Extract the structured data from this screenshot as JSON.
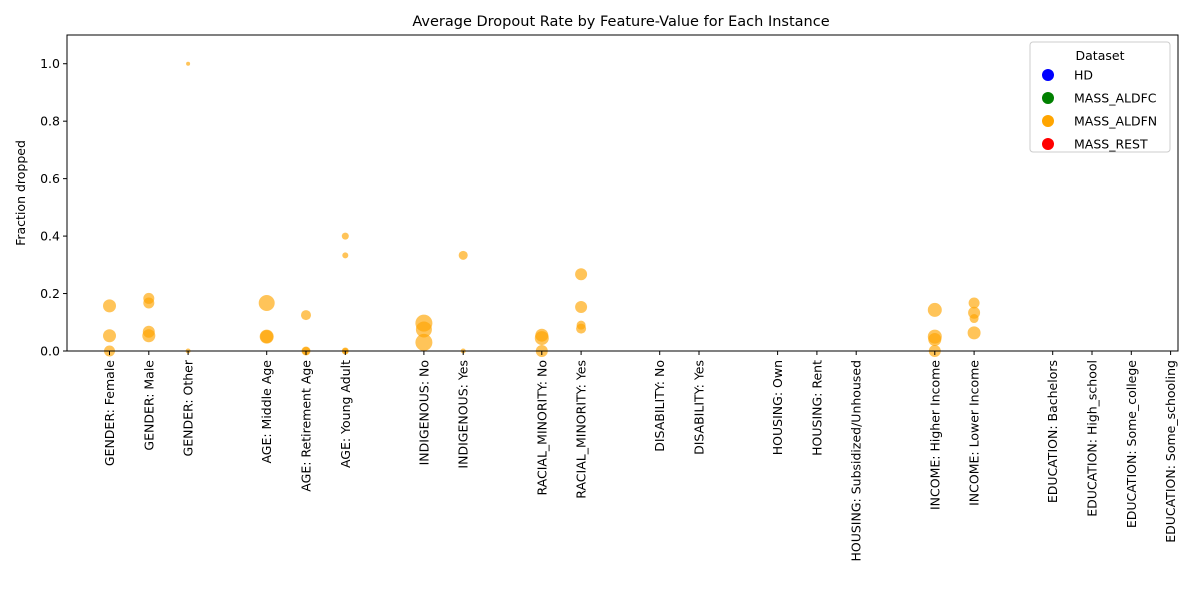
{
  "chart_data": {
    "type": "scatter",
    "title": "Average Dropout Rate by Feature-Value for Each Instance",
    "ylabel": "Fraction dropped",
    "xlabel": "",
    "ylim": [
      0,
      1.1
    ],
    "yticks": [
      0.0,
      0.2,
      0.4,
      0.6,
      0.8,
      1.0
    ],
    "ytick_labels": [
      "0.0",
      "0.2",
      "0.4",
      "0.6",
      "0.8",
      "1.0"
    ],
    "categories": [
      {
        "label": "GENDER: Female",
        "slot": 0
      },
      {
        "label": "GENDER: Male",
        "slot": 1
      },
      {
        "label": "GENDER: Other",
        "slot": 2
      },
      {
        "label": "AGE: Middle Age",
        "slot": 4
      },
      {
        "label": "AGE: Retirement Age",
        "slot": 5
      },
      {
        "label": "AGE: Young Adult",
        "slot": 6
      },
      {
        "label": "INDIGENOUS: No",
        "slot": 8
      },
      {
        "label": "INDIGENOUS: Yes",
        "slot": 9
      },
      {
        "label": "RACIAL_MINORITY: No",
        "slot": 11
      },
      {
        "label": "RACIAL_MINORITY: Yes",
        "slot": 12
      },
      {
        "label": "DISABILITY: No",
        "slot": 14
      },
      {
        "label": "DISABILITY: Yes",
        "slot": 15
      },
      {
        "label": "HOUSING: Own",
        "slot": 17
      },
      {
        "label": "HOUSING: Rent",
        "slot": 18
      },
      {
        "label": "HOUSING: Subsidized/Unhoused",
        "slot": 19
      },
      {
        "label": "INCOME: Higher Income",
        "slot": 21
      },
      {
        "label": "INCOME: Lower Income",
        "slot": 22
      },
      {
        "label": "EDUCATION: Bachelors",
        "slot": 24
      },
      {
        "label": "EDUCATION: High_school",
        "slot": 25
      },
      {
        "label": "EDUCATION: Some_college",
        "slot": 26
      },
      {
        "label": "EDUCATION: Some_schooling",
        "slot": 27
      }
    ],
    "legend": {
      "title": "Dataset",
      "placement": "top-right",
      "entries": [
        {
          "name": "HD",
          "color": "#0000ff"
        },
        {
          "name": "MASS_ALDFC",
          "color": "#008000"
        },
        {
          "name": "MASS_ALDFN",
          "color": "#ffa500"
        },
        {
          "name": "MASS_REST",
          "color": "#ff0000"
        }
      ]
    },
    "points_series": "MASS_ALDFN",
    "point_color": "#ffa500",
    "points": [
      {
        "category": "GENDER: Female",
        "y": 0.157,
        "size": 13
      },
      {
        "category": "GENDER: Female",
        "y": 0.053,
        "size": 13
      },
      {
        "category": "GENDER: Female",
        "y": 0.0,
        "size": 11
      },
      {
        "category": "GENDER: Male",
        "y": 0.183,
        "size": 11
      },
      {
        "category": "GENDER: Male",
        "y": 0.167,
        "size": 11
      },
      {
        "category": "GENDER: Male",
        "y": 0.067,
        "size": 12
      },
      {
        "category": "GENDER: Male",
        "y": 0.053,
        "size": 13
      },
      {
        "category": "GENDER: Other",
        "y": 1.0,
        "size": 4
      },
      {
        "category": "GENDER: Other",
        "y": 0.0,
        "size": 5
      },
      {
        "category": "AGE: Middle Age",
        "y": 0.167,
        "size": 16
      },
      {
        "category": "AGE: Middle Age",
        "y": 0.05,
        "size": 14
      },
      {
        "category": "AGE: Middle Age",
        "y": 0.05,
        "size": 13
      },
      {
        "category": "AGE: Retirement Age",
        "y": 0.125,
        "size": 10
      },
      {
        "category": "AGE: Retirement Age",
        "y": 0.0,
        "size": 9
      },
      {
        "category": "AGE: Retirement Age",
        "y": 0.0,
        "size": 8
      },
      {
        "category": "AGE: Young Adult",
        "y": 0.4,
        "size": 7
      },
      {
        "category": "AGE: Young Adult",
        "y": 0.333,
        "size": 6
      },
      {
        "category": "AGE: Young Adult",
        "y": 0.0,
        "size": 7
      },
      {
        "category": "AGE: Young Adult",
        "y": 0.0,
        "size": 6
      },
      {
        "category": "INDIGENOUS: No",
        "y": 0.097,
        "size": 17
      },
      {
        "category": "INDIGENOUS: No",
        "y": 0.075,
        "size": 16
      },
      {
        "category": "INDIGENOUS: No",
        "y": 0.03,
        "size": 17
      },
      {
        "category": "INDIGENOUS: Yes",
        "y": 0.333,
        "size": 9
      },
      {
        "category": "INDIGENOUS: Yes",
        "y": 0.0,
        "size": 5
      },
      {
        "category": "RACIAL_MINORITY: No",
        "y": 0.055,
        "size": 13
      },
      {
        "category": "RACIAL_MINORITY: No",
        "y": 0.045,
        "size": 14
      },
      {
        "category": "RACIAL_MINORITY: No",
        "y": 0.0,
        "size": 12
      },
      {
        "category": "RACIAL_MINORITY: Yes",
        "y": 0.267,
        "size": 12
      },
      {
        "category": "RACIAL_MINORITY: Yes",
        "y": 0.153,
        "size": 12
      },
      {
        "category": "RACIAL_MINORITY: Yes",
        "y": 0.09,
        "size": 9
      },
      {
        "category": "RACIAL_MINORITY: Yes",
        "y": 0.078,
        "size": 10
      },
      {
        "category": "INCOME: Higher Income",
        "y": 0.143,
        "size": 14
      },
      {
        "category": "INCOME: Higher Income",
        "y": 0.05,
        "size": 14
      },
      {
        "category": "INCOME: Higher Income",
        "y": 0.04,
        "size": 13
      },
      {
        "category": "INCOME: Higher Income",
        "y": 0.0,
        "size": 12
      },
      {
        "category": "INCOME: Lower Income",
        "y": 0.167,
        "size": 11
      },
      {
        "category": "INCOME: Lower Income",
        "y": 0.133,
        "size": 12
      },
      {
        "category": "INCOME: Lower Income",
        "y": 0.113,
        "size": 9
      },
      {
        "category": "INCOME: Lower Income",
        "y": 0.063,
        "size": 13
      }
    ]
  }
}
